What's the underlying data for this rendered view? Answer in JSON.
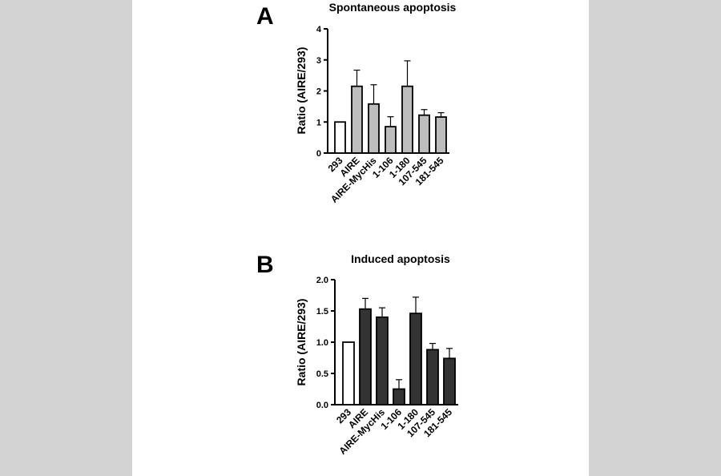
{
  "figure": {
    "colors": {
      "background_band": "#d3d3d3",
      "panel_background": "#ffffff",
      "control_bar": "#ffffff",
      "spontaneous_bar": "#bdbdbd",
      "induced_bar": "#333333",
      "stroke": "#000000"
    }
  },
  "chart_data": [
    {
      "panel_letter": "A",
      "type": "bar",
      "title": "Spontaneous apoptosis",
      "ylabel": "Ratio (AIRE/293)",
      "xlabel": "",
      "categories": [
        "293",
        "AIRE",
        "AIRE-MycHis",
        "1-106",
        "1-180",
        "107-545",
        "181-545"
      ],
      "values": [
        1.0,
        2.15,
        1.58,
        0.85,
        2.15,
        1.22,
        1.16
      ],
      "errors": [
        0.0,
        0.52,
        0.62,
        0.32,
        0.82,
        0.18,
        0.14
      ],
      "bar_colors": [
        "#ffffff",
        "#bdbdbd",
        "#bdbdbd",
        "#bdbdbd",
        "#bdbdbd",
        "#bdbdbd",
        "#bdbdbd"
      ],
      "ylim": [
        0,
        4
      ],
      "yticks": [
        "0",
        "1",
        "2",
        "3",
        "4"
      ],
      "grid": false,
      "legend": "none"
    },
    {
      "panel_letter": "B",
      "type": "bar",
      "title": "Induced apoptosis",
      "ylabel": "Ratio (AIRE/293)",
      "xlabel": "",
      "categories": [
        "293",
        "AIRE",
        "AIRE-MycHis",
        "1-106",
        "1-180",
        "107-545",
        "181-545"
      ],
      "values": [
        1.0,
        1.53,
        1.4,
        0.25,
        1.46,
        0.88,
        0.74
      ],
      "errors": [
        0.0,
        0.17,
        0.15,
        0.15,
        0.26,
        0.1,
        0.16
      ],
      "bar_colors": [
        "#ffffff",
        "#333333",
        "#333333",
        "#333333",
        "#333333",
        "#333333",
        "#333333"
      ],
      "ylim": [
        0,
        2.0
      ],
      "yticks": [
        "0.0",
        "0.5",
        "1.0",
        "1.5",
        "2.0"
      ],
      "grid": false,
      "legend": "none"
    }
  ]
}
